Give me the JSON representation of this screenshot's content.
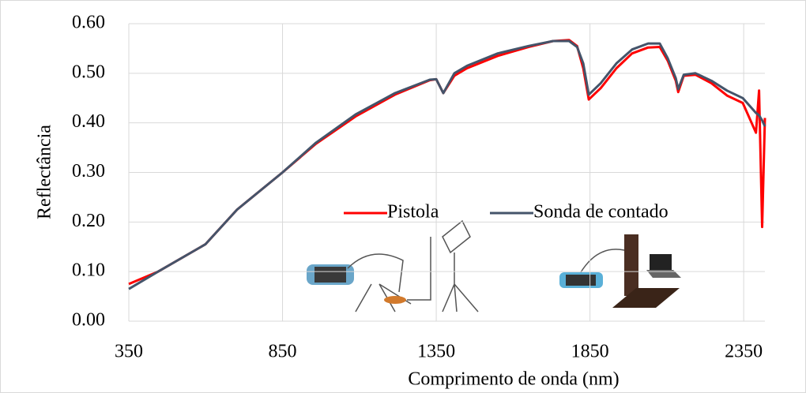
{
  "chart_data": {
    "type": "line",
    "x_label": "Comprimento de onda (nm)",
    "y_label": "Reflectância",
    "x": [
      350,
      445,
      599,
      702,
      850,
      959,
      1088,
      1216,
      1329,
      1350,
      1373,
      1409,
      1450,
      1550,
      1650,
      1730,
      1782,
      1808,
      1828,
      1846,
      1885,
      1936,
      1987,
      2039,
      2077,
      2103,
      2129,
      2137,
      2155,
      2193,
      2245,
      2296,
      2347,
      2390,
      2400,
      2410,
      2419
    ],
    "series": [
      {
        "name": "Pistola",
        "color": "#ff0000",
        "values": [
          0.075,
          0.1,
          0.155,
          0.225,
          0.3,
          0.358,
          0.413,
          0.457,
          0.486,
          0.488,
          0.46,
          0.495,
          0.51,
          0.535,
          0.553,
          0.565,
          0.567,
          0.555,
          0.51,
          0.447,
          0.47,
          0.51,
          0.54,
          0.552,
          0.553,
          0.525,
          0.485,
          0.462,
          0.495,
          0.497,
          0.48,
          0.455,
          0.44,
          0.38,
          0.465,
          0.19,
          0.41
        ]
      },
      {
        "name": "Sonda de contado",
        "color": "#44546a",
        "values": [
          0.065,
          0.1,
          0.155,
          0.225,
          0.3,
          0.36,
          0.417,
          0.46,
          0.487,
          0.488,
          0.46,
          0.5,
          0.515,
          0.54,
          0.555,
          0.565,
          0.565,
          0.553,
          0.52,
          0.457,
          0.48,
          0.52,
          0.548,
          0.56,
          0.56,
          0.53,
          0.49,
          0.468,
          0.497,
          0.5,
          0.485,
          0.465,
          0.45,
          0.42,
          0.415,
          0.405,
          0.393
        ]
      }
    ],
    "xlim": [
      350,
      2419
    ],
    "xticks": [
      350,
      850,
      1350,
      1850,
      2350
    ],
    "ylim": [
      0,
      0.6
    ],
    "yticks": [
      {
        "value": 0,
        "label": "0.00"
      },
      {
        "value": 0.1,
        "label": "0.10"
      },
      {
        "value": 0.2,
        "label": "0.20"
      },
      {
        "value": 0.3,
        "label": "0.30"
      },
      {
        "value": 0.4,
        "label": "0.40"
      },
      {
        "value": 0.5,
        "label": "0.50"
      },
      {
        "value": 0.6,
        "label": "0.60"
      }
    ],
    "grid": true
  }
}
